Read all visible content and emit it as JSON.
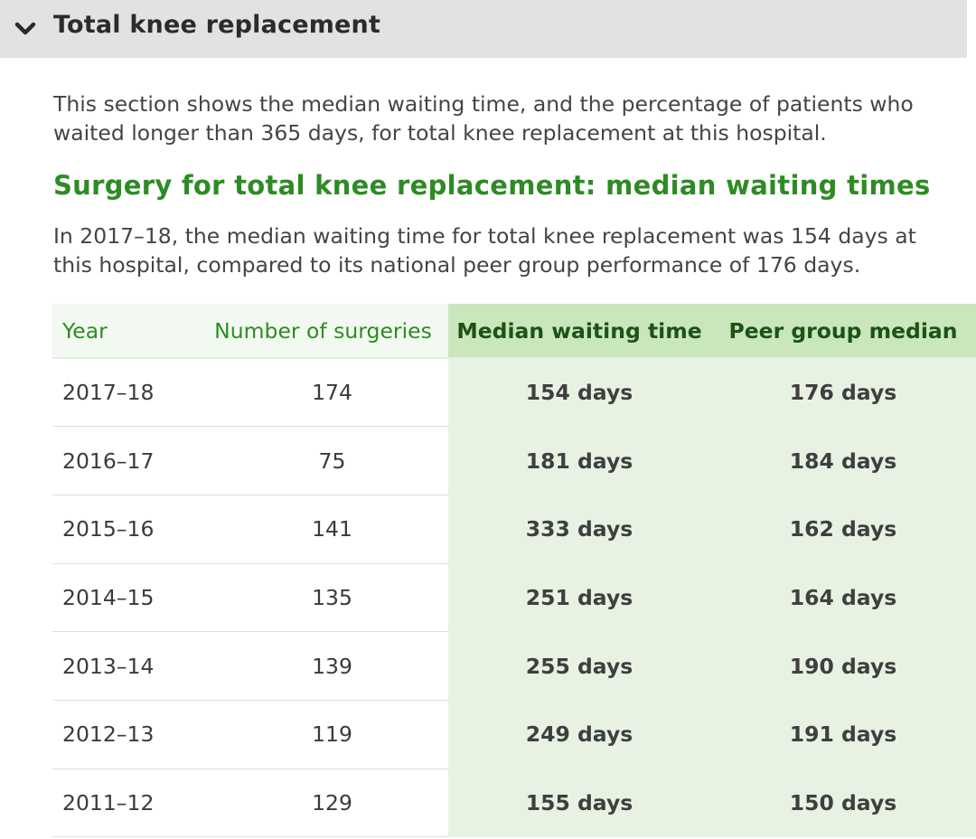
{
  "accordion": {
    "title": "Total knee replacement",
    "expanded": true,
    "icon": "chevron-down-icon"
  },
  "intro_text": "This section shows the median waiting time, and the percentage of patients who waited longer than 365 days, for total knee replacement at this hospital.",
  "section_heading": "Surgery for total knee replacement: median waiting times",
  "summary_text": "In 2017–18, the median waiting time for total knee replacement was 154 days at this hospital, compared to its national peer group performance of 176 days.",
  "table": {
    "headers": {
      "year": "Year",
      "surgeries": "Number of surgeries",
      "median": "Median waiting time",
      "peer": "Peer group median"
    },
    "rows": [
      {
        "year": "2017–18",
        "surgeries": "174",
        "median": "154 days",
        "peer": "176 days"
      },
      {
        "year": "2016–17",
        "surgeries": "75",
        "median": "181 days",
        "peer": "184 days"
      },
      {
        "year": "2015–16",
        "surgeries": "141",
        "median": "333 days",
        "peer": "162 days"
      },
      {
        "year": "2014–15",
        "surgeries": "135",
        "median": "251 days",
        "peer": "164 days"
      },
      {
        "year": "2013–14",
        "surgeries": "139",
        "median": "255 days",
        "peer": "190 days"
      },
      {
        "year": "2012–13",
        "surgeries": "119",
        "median": "249 days",
        "peer": "191 days"
      },
      {
        "year": "2011–12",
        "surgeries": "129",
        "median": "155 days",
        "peer": "150 days"
      }
    ]
  },
  "colors": {
    "header_bg": "#e2e2e2",
    "heading_green": "#2e8b24",
    "highlight_header": "#c9e6bd",
    "highlight_cell": "#e8f2e3"
  }
}
